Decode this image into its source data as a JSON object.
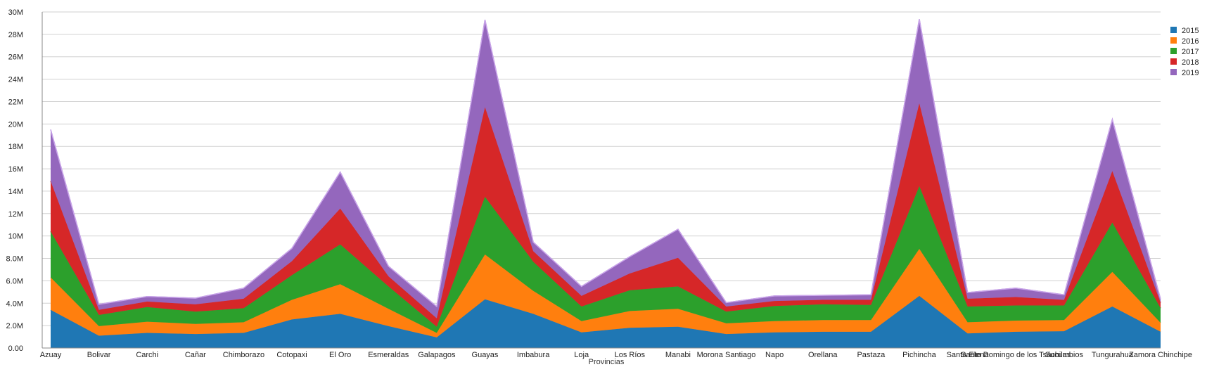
{
  "chart_data": {
    "type": "area",
    "stacked": true,
    "xlabel": "Provincias",
    "ylabel": "",
    "ylim": [
      0,
      30000000
    ],
    "yticks": [
      "0.00",
      "2.0M",
      "4.0M",
      "6.0M",
      "8.0M",
      "10M",
      "12M",
      "14M",
      "16M",
      "18M",
      "20M",
      "22M",
      "24M",
      "26M",
      "28M",
      "30M"
    ],
    "grid": true,
    "legend_position": "top-right",
    "categories": [
      "Azuay",
      "Bolivar",
      "Carchi",
      "Cañar",
      "Chimborazo",
      "Cotopaxi",
      "El Oro",
      "Esmeraldas",
      "Galapagos",
      "Guayas",
      "Imbabura",
      "Loja",
      "Los Ríos",
      "Manabi",
      "Morona Santiago",
      "Napo",
      "Orellana",
      "Pastaza",
      "Pichincha",
      "Santa Elena",
      "Santo Domingo de los Tsáchilas",
      "Sucumbios",
      "Tungurahua",
      "Zamora Chinchipe"
    ],
    "series": [
      {
        "name": "2015",
        "color": "#1f77b4",
        "values": [
          3400000,
          1100000,
          1350000,
          1250000,
          1350000,
          2550000,
          3050000,
          1950000,
          950000,
          4350000,
          3050000,
          1400000,
          1800000,
          1900000,
          1250000,
          1400000,
          1450000,
          1450000,
          4650000,
          1300000,
          1450000,
          1500000,
          3700000,
          1450000
        ]
      },
      {
        "name": "2016",
        "color": "#ff7f0e",
        "values": [
          2900000,
          850000,
          1000000,
          900000,
          950000,
          1750000,
          2650000,
          1550000,
          400000,
          4000000,
          2050000,
          1000000,
          1500000,
          1600000,
          950000,
          1000000,
          1050000,
          1050000,
          4200000,
          1000000,
          1000000,
          1000000,
          3100000,
          800000
        ]
      },
      {
        "name": "2017",
        "color": "#2ca02c",
        "values": [
          4100000,
          1000000,
          1300000,
          1100000,
          1250000,
          2200000,
          3550000,
          2000000,
          550000,
          5150000,
          2600000,
          1300000,
          1850000,
          2000000,
          1050000,
          1350000,
          1400000,
          1350000,
          5600000,
          1400000,
          1350000,
          1300000,
          4400000,
          1300000
        ]
      },
      {
        "name": "2018",
        "color": "#d62728",
        "values": [
          4500000,
          450000,
          500000,
          650000,
          850000,
          1250000,
          3200000,
          900000,
          750000,
          8000000,
          950000,
          950000,
          1500000,
          2550000,
          450000,
          450000,
          400000,
          450000,
          7400000,
          700000,
          750000,
          500000,
          4600000,
          500000
        ]
      },
      {
        "name": "2019",
        "color": "#9467bd",
        "values": [
          4600000,
          500000,
          450000,
          550000,
          950000,
          1150000,
          3250000,
          900000,
          1050000,
          7800000,
          800000,
          850000,
          1500000,
          2550000,
          350000,
          450000,
          400000,
          450000,
          7500000,
          550000,
          800000,
          450000,
          4600000,
          300000
        ]
      }
    ]
  }
}
